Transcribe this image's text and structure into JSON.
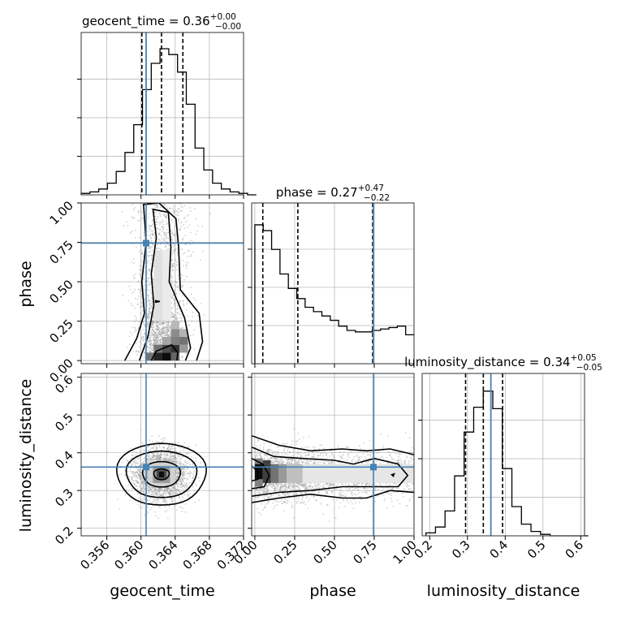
{
  "chart_data": {
    "type": "corner",
    "parameters": [
      {
        "name": "geocent_time",
        "label": "geocent_time",
        "median": "0.36",
        "plus": "+0.00",
        "minus": "−0.00",
        "range": [
          0.353,
          0.372
        ],
        "ticks": [
          0.356,
          0.36,
          0.364,
          0.368,
          0.372
        ],
        "tick_labels": [
          "0.356",
          "0.360",
          "0.364",
          "0.368",
          "0.372"
        ],
        "injection": 0.3606,
        "quantiles": [
          0.3601,
          0.3624,
          0.3649
        ]
      },
      {
        "name": "phase",
        "label": "phase",
        "median": "0.27",
        "plus": "+0.47",
        "minus": "−0.22",
        "range": [
          -0.02,
          1.0
        ],
        "ticks": [
          0.0,
          0.25,
          0.5,
          0.75,
          1.0
        ],
        "tick_labels": [
          "0.00",
          "0.25",
          "0.50",
          "0.75",
          "1.00"
        ],
        "injection": 0.745,
        "quantiles": [
          0.05,
          0.27,
          0.74
        ]
      },
      {
        "name": "luminosity_distance",
        "label": "luminosity_distance",
        "median": "0.34",
        "plus": "+0.05",
        "minus": "−0.05",
        "range": [
          0.18,
          0.61
        ],
        "ticks": [
          0.2,
          0.3,
          0.4,
          0.5,
          0.6
        ],
        "tick_labels": [
          "0.2",
          "0.3",
          "0.4",
          "0.5",
          "0.6"
        ],
        "injection": 0.362,
        "quantiles": [
          0.295,
          0.342,
          0.393
        ]
      }
    ],
    "hist_geocent_time": [
      0.01,
      0.02,
      0.04,
      0.08,
      0.16,
      0.29,
      0.48,
      0.72,
      0.9,
      1.0,
      0.96,
      0.84,
      0.62,
      0.32,
      0.17,
      0.08,
      0.04,
      0.02,
      0.01,
      0.0
    ],
    "hist_phase": [
      0.96,
      0.92,
      0.79,
      0.62,
      0.52,
      0.45,
      0.39,
      0.36,
      0.33,
      0.3,
      0.26,
      0.23,
      0.22,
      0.22,
      0.23,
      0.24,
      0.25,
      0.26,
      0.2
    ],
    "hist_luminosity_distance": [
      0.02,
      0.06,
      0.17,
      0.41,
      0.71,
      0.88,
      0.99,
      0.87,
      0.46,
      0.2,
      0.08,
      0.03,
      0.01,
      0.0,
      0.0,
      0.0,
      0.0
    ],
    "grid": true,
    "colors": {
      "injection": "#4682b4",
      "hist": "#000000",
      "scatter": "#9a9a9a",
      "grid": "#b0b0b0"
    }
  }
}
